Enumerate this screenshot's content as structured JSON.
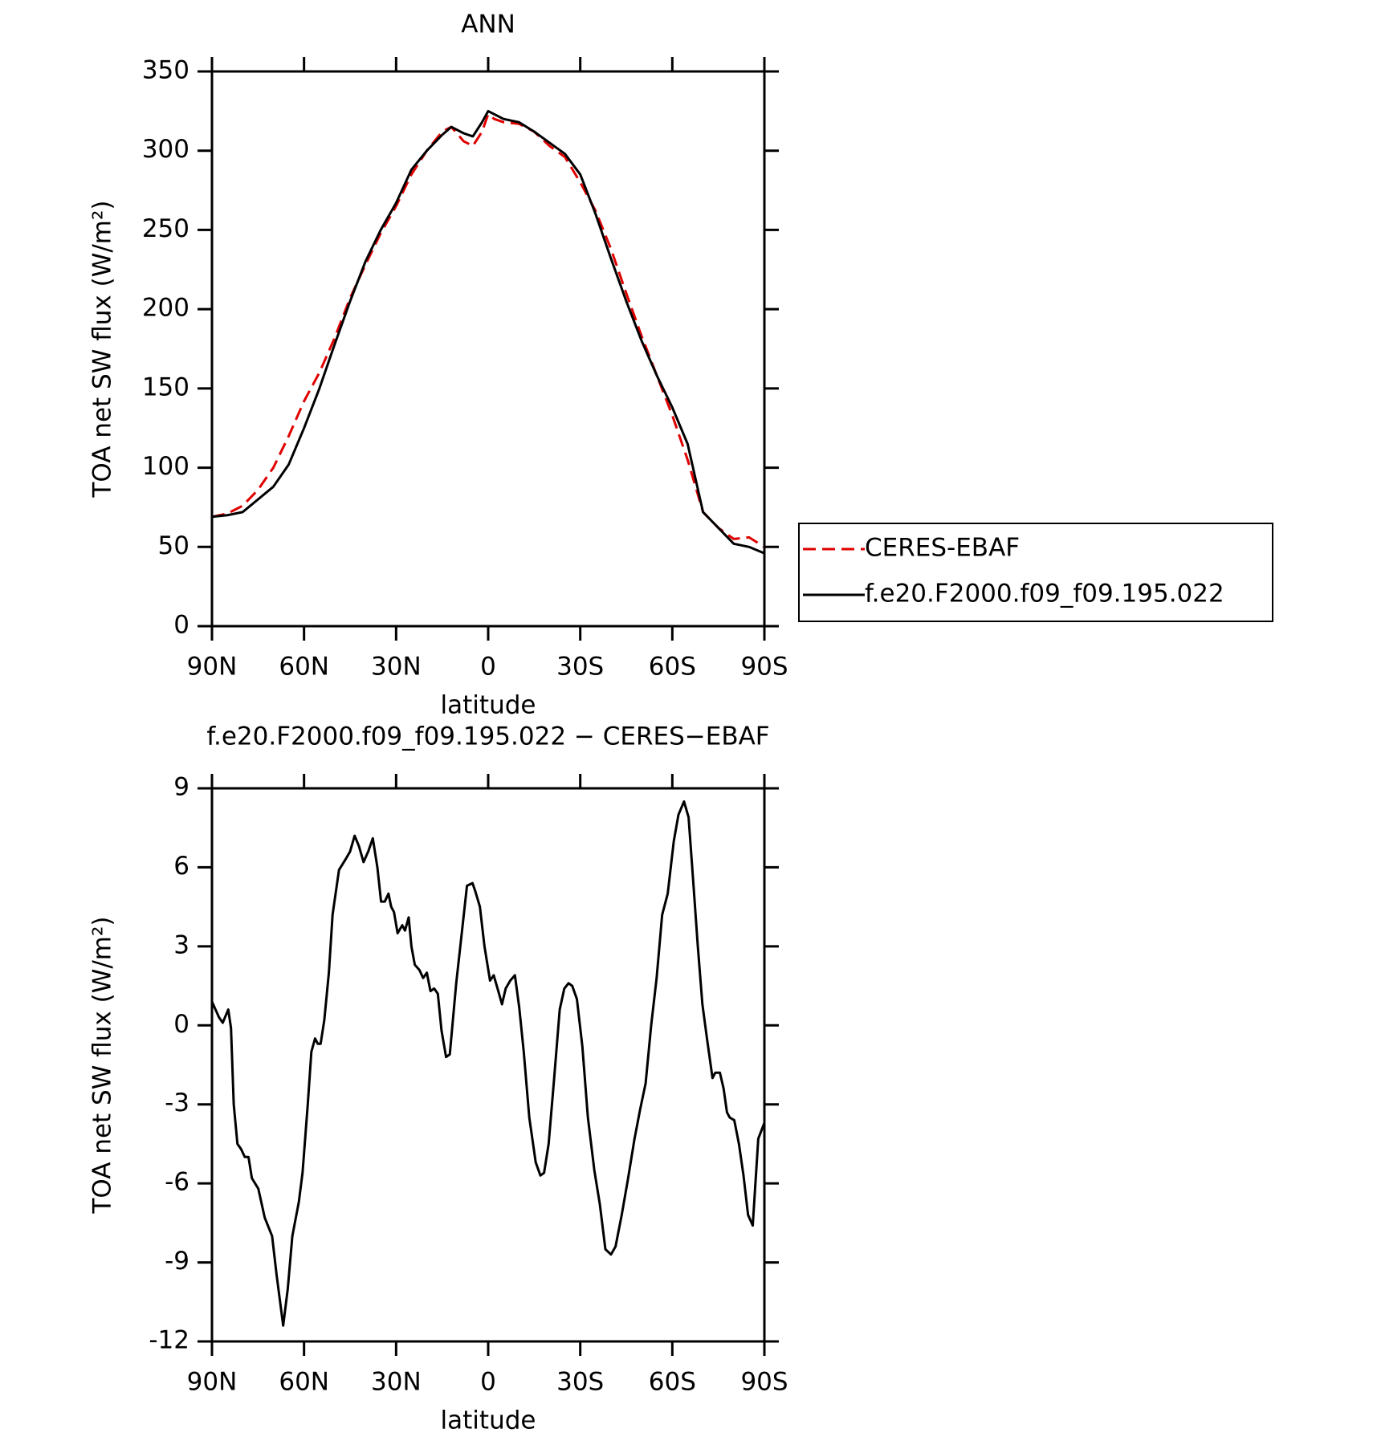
{
  "chart_data": [
    {
      "type": "line",
      "title": "ANN",
      "xlabel": "latitude",
      "ylabel": "TOA net SW flux (W/m²)",
      "x": [
        90,
        85,
        80,
        75,
        70,
        65,
        60,
        55,
        50,
        45,
        40,
        35,
        30,
        25,
        20,
        15,
        12,
        8,
        5,
        2,
        0,
        -2,
        -5,
        -10,
        -15,
        -20,
        -25,
        -30,
        -35,
        -40,
        -45,
        -50,
        -55,
        -60,
        -65,
        -70,
        -75,
        -80,
        -85,
        -90
      ],
      "series": [
        {
          "name": "CERES-EBAF",
          "color": "#e00000",
          "style": "dashed",
          "values": [
            69,
            71,
            76,
            86,
            100,
            120,
            142,
            160,
            182,
            207,
            228,
            248,
            265,
            285,
            300,
            312,
            315,
            306,
            303,
            312,
            323,
            320,
            318,
            317,
            312,
            303,
            296,
            280,
            262,
            238,
            210,
            183,
            158,
            133,
            105,
            72,
            62,
            55,
            56,
            50
          ]
        },
        {
          "name": "f.e20.F2000.f09_f09.195.022",
          "color": "#000000",
          "style": "solid",
          "values": [
            69,
            70,
            72,
            80,
            88,
            102,
            125,
            150,
            178,
            205,
            230,
            250,
            267,
            288,
            300,
            310,
            315,
            311,
            309,
            318,
            325,
            323,
            320,
            318,
            312,
            305,
            298,
            285,
            260,
            232,
            205,
            180,
            158,
            138,
            115,
            72,
            62,
            52,
            50,
            46
          ]
        }
      ],
      "xlim": [
        90,
        -90
      ],
      "ylim": [
        0,
        350
      ],
      "xticks": [
        {
          "value": 90,
          "label": "90N"
        },
        {
          "value": 60,
          "label": "60N"
        },
        {
          "value": 30,
          "label": "30N"
        },
        0,
        {
          "value": -30,
          "label": "30S"
        },
        {
          "value": -60,
          "label": "60S"
        },
        {
          "value": -90,
          "label": "90S"
        }
      ],
      "yticks": [
        0,
        50,
        100,
        150,
        200,
        250,
        300,
        350
      ],
      "legend": "right"
    },
    {
      "type": "line",
      "title": "f.e20.F2000.f09_f09.195.022 − CERES−EBAF",
      "xlabel": "latitude",
      "ylabel": "TOA net SW flux (W/m²)",
      "x": [
        90,
        87.7,
        86.5,
        84.7,
        83.8,
        82.9,
        81.7,
        80.5,
        79.3,
        78.1,
        77,
        74.9,
        72.8,
        70.4,
        68.9,
        66.8,
        65.3,
        63.8,
        61.7,
        60.5,
        58.8,
        57.6,
        56.4,
        55.5,
        54.6,
        53.4,
        51.9,
        50.7,
        48.6,
        46.5,
        45,
        43.5,
        42.1,
        40.6,
        39.1,
        37.6,
        36.1,
        34.9,
        33.7,
        32.5,
        31.6,
        30.7,
        29.5,
        28,
        27.1,
        25.9,
        25,
        23.9,
        22.4,
        21.2,
        20,
        18.8,
        17.6,
        16.4,
        15.2,
        13.7,
        12.5,
        10.4,
        8.6,
        6.9,
        5.1,
        4.2,
        2.7,
        1.2,
        -0.6,
        -1.8,
        -3.3,
        -4.5,
        -5.7,
        -7.2,
        -8.7,
        -10.1,
        -11.6,
        -13.4,
        -15.5,
        -17,
        -18.2,
        -19.7,
        -21.5,
        -23.3,
        -24.8,
        -26.2,
        -27.4,
        -28.9,
        -30.7,
        -32.5,
        -34.6,
        -36.4,
        -38.2,
        -40,
        -41.5,
        -43.5,
        -45.6,
        -47.7,
        -49.5,
        -51.3,
        -53.1,
        -54.9,
        -56.7,
        -58.5,
        -60.5,
        -62,
        -63.8,
        -65.3,
        -66.8,
        -68.3,
        -69.8,
        -71.3,
        -73.1,
        -74,
        -75.5,
        -76.7,
        -77.8,
        -78.7,
        -80.2,
        -81.7,
        -83.2,
        -84.7,
        -86.2,
        -88,
        -90
      ],
      "series": [
        {
          "name": "f.e20.F2000.f09_f09.195.022",
          "color": "#000000",
          "style": "solid",
          "values": [
            0.9,
            0.3,
            0.1,
            0.6,
            -0.1,
            -3,
            -4.5,
            -4.7,
            -5,
            -5,
            -5.8,
            -6.2,
            -7.3,
            -8,
            -9.5,
            -11.4,
            -10,
            -8,
            -6.7,
            -5.6,
            -3,
            -1,
            -0.5,
            -0.7,
            -0.7,
            0.2,
            2,
            4.2,
            5.9,
            6.3,
            6.6,
            7.2,
            6.8,
            6.2,
            6.6,
            7.1,
            6,
            4.7,
            4.7,
            5,
            4.5,
            4.3,
            3.5,
            3.8,
            3.6,
            4.1,
            3,
            2.3,
            2.1,
            1.8,
            2,
            1.3,
            1.4,
            1.2,
            -0.2,
            -1.2,
            -1.1,
            1.6,
            3.5,
            5.3,
            5.4,
            5.1,
            4.5,
            3,
            1.7,
            1.9,
            1.3,
            0.8,
            1.4,
            1.7,
            1.9,
            0.7,
            -1,
            -3.5,
            -5.2,
            -5.7,
            -5.6,
            -4.5,
            -2,
            0.6,
            1.4,
            1.6,
            1.5,
            1,
            -0.8,
            -3.5,
            -5.5,
            -6.8,
            -8.5,
            -8.7,
            -8.4,
            -7.2,
            -5.8,
            -4.3,
            -3.2,
            -2.2,
            0,
            1.8,
            4.2,
            5,
            7,
            8,
            8.5,
            7.9,
            5.5,
            3,
            0.8,
            -0.5,
            -2,
            -1.8,
            -1.8,
            -2.4,
            -3.3,
            -3.5,
            -3.6,
            -4.5,
            -5.7,
            -7.2,
            -7.6,
            -4.3,
            -3.7
          ]
        }
      ],
      "xlim": [
        90,
        -90
      ],
      "ylim": [
        -12,
        9
      ],
      "xticks": [
        {
          "value": 90,
          "label": "90N"
        },
        {
          "value": 60,
          "label": "60N"
        },
        {
          "value": 30,
          "label": "30N"
        },
        0,
        {
          "value": -30,
          "label": "30S"
        },
        {
          "value": -60,
          "label": "60S"
        },
        {
          "value": -90,
          "label": "90S"
        }
      ],
      "yticks": [
        -12,
        -9,
        -6,
        -3,
        0,
        3,
        6,
        9
      ]
    }
  ]
}
